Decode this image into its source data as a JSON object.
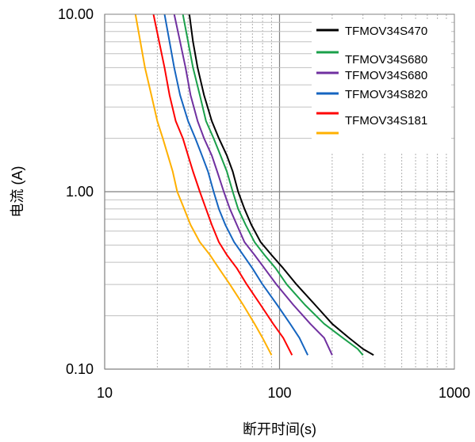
{
  "chart_data": {
    "type": "line",
    "title": "",
    "xlabel": "断开时间(s)",
    "ylabel": "电流 (A)",
    "x_scale": "log",
    "y_scale": "log",
    "xlim": [
      10,
      1000
    ],
    "ylim": [
      0.1,
      10
    ],
    "x_ticks": [
      "10",
      "100",
      "1000"
    ],
    "y_ticks": [
      "0.10",
      "1.00",
      "10.00"
    ],
    "grid": true,
    "legend_position": "top-right",
    "series": [
      {
        "name": "TFMOV34S470",
        "color": "#000000",
        "points": [
          [
            30.5,
            10
          ],
          [
            32,
            7
          ],
          [
            34,
            5
          ],
          [
            37,
            3.5
          ],
          [
            41,
            2.5
          ],
          [
            45,
            2
          ],
          [
            50,
            1.6
          ],
          [
            54,
            1.3
          ],
          [
            58,
            1
          ],
          [
            63,
            0.8
          ],
          [
            69,
            0.65
          ],
          [
            78,
            0.52
          ],
          [
            90,
            0.44
          ],
          [
            105,
            0.37
          ],
          [
            125,
            0.3
          ],
          [
            160,
            0.23
          ],
          [
            200,
            0.18
          ],
          [
            250,
            0.15
          ],
          [
            300,
            0.13
          ],
          [
            345,
            0.12
          ]
        ]
      },
      {
        "name": "TFMOV34S680",
        "color": "#1aa04a",
        "points": [
          [
            28,
            10
          ],
          [
            30,
            7
          ],
          [
            32,
            5
          ],
          [
            35,
            3.5
          ],
          [
            38,
            2.5
          ],
          [
            42,
            2
          ],
          [
            46,
            1.6
          ],
          [
            50,
            1.3
          ],
          [
            54,
            1
          ],
          [
            58,
            0.8
          ],
          [
            64,
            0.65
          ],
          [
            72,
            0.52
          ],
          [
            82,
            0.44
          ],
          [
            95,
            0.37
          ],
          [
            110,
            0.3
          ],
          [
            140,
            0.23
          ],
          [
            180,
            0.18
          ],
          [
            230,
            0.15
          ],
          [
            280,
            0.13
          ],
          [
            300,
            0.12
          ]
        ]
      },
      {
        "name": "TFMOV34S680",
        "color": "#7030a0",
        "points": [
          [
            25,
            10
          ],
          [
            27,
            7
          ],
          [
            29,
            5
          ],
          [
            31,
            3.5
          ],
          [
            34,
            2.5
          ],
          [
            37,
            2
          ],
          [
            41,
            1.6
          ],
          [
            44,
            1.3
          ],
          [
            48,
            1
          ],
          [
            52,
            0.8
          ],
          [
            57,
            0.65
          ],
          [
            63,
            0.52
          ],
          [
            72,
            0.44
          ],
          [
            82,
            0.37
          ],
          [
            96,
            0.3
          ],
          [
            120,
            0.23
          ],
          [
            150,
            0.18
          ],
          [
            180,
            0.15
          ],
          [
            200,
            0.12
          ]
        ]
      },
      {
        "name": "TFMOV34S820",
        "color": "#1565c0",
        "points": [
          [
            22,
            10
          ],
          [
            23.5,
            7
          ],
          [
            25,
            5
          ],
          [
            27,
            3.5
          ],
          [
            30,
            2.5
          ],
          [
            33,
            2
          ],
          [
            36,
            1.6
          ],
          [
            39,
            1.3
          ],
          [
            42,
            1
          ],
          [
            45,
            0.8
          ],
          [
            49,
            0.65
          ],
          [
            55,
            0.52
          ],
          [
            62,
            0.44
          ],
          [
            70,
            0.37
          ],
          [
            80,
            0.3
          ],
          [
            97,
            0.23
          ],
          [
            115,
            0.18
          ],
          [
            130,
            0.15
          ],
          [
            145,
            0.12
          ]
        ]
      },
      {
        "name": "TFMOV34S181",
        "color": "#ff0000",
        "points": [
          [
            19,
            10
          ],
          [
            20.5,
            7
          ],
          [
            22,
            5
          ],
          [
            23.5,
            3.5
          ],
          [
            25.5,
            2.5
          ],
          [
            28,
            2
          ],
          [
            30,
            1.6
          ],
          [
            32,
            1.3
          ],
          [
            35,
            1
          ],
          [
            38,
            0.8
          ],
          [
            41,
            0.65
          ],
          [
            45,
            0.52
          ],
          [
            50,
            0.44
          ],
          [
            57,
            0.37
          ],
          [
            65,
            0.3
          ],
          [
            78,
            0.23
          ],
          [
            92,
            0.18
          ],
          [
            105,
            0.15
          ],
          [
            118,
            0.12
          ]
        ]
      },
      {
        "name": "TFMOV34S181",
        "color": "#ffb000",
        "points": [
          [
            15,
            10
          ],
          [
            16,
            7
          ],
          [
            17,
            5
          ],
          [
            18.5,
            3.5
          ],
          [
            20,
            2.5
          ],
          [
            21.5,
            2
          ],
          [
            23,
            1.6
          ],
          [
            24.5,
            1.3
          ],
          [
            26,
            1
          ],
          [
            28.5,
            0.8
          ],
          [
            31,
            0.65
          ],
          [
            35,
            0.52
          ],
          [
            40,
            0.44
          ],
          [
            45,
            0.37
          ],
          [
            52,
            0.3
          ],
          [
            62,
            0.23
          ],
          [
            72,
            0.18
          ],
          [
            80,
            0.15
          ],
          [
            90,
            0.12
          ]
        ]
      }
    ]
  }
}
